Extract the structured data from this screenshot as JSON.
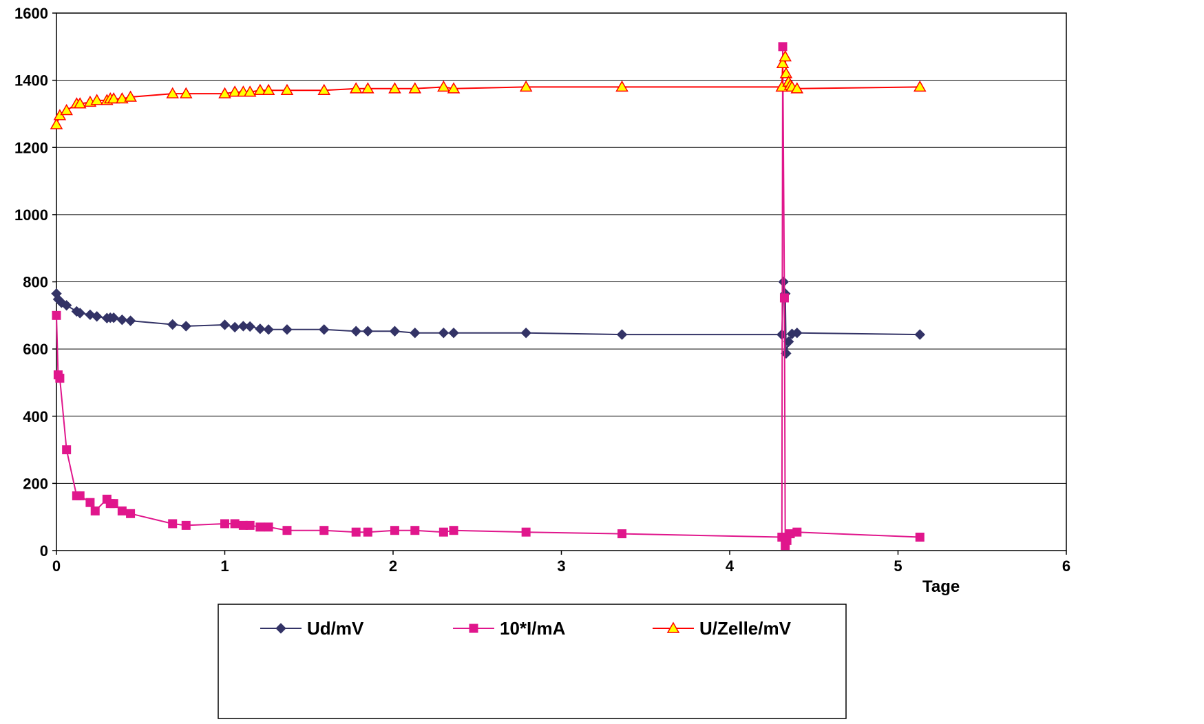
{
  "chart_data": {
    "type": "line",
    "title": "",
    "xlabel": "Tage",
    "ylabel": "",
    "xlim": [
      0,
      6
    ],
    "ylim": [
      0,
      1600
    ],
    "x_ticks": [
      "0",
      "1",
      "2",
      "3",
      "4",
      "5",
      "6"
    ],
    "y_ticks": [
      "0",
      "200",
      "400",
      "600",
      "800",
      "1000",
      "1200",
      "1400",
      "1600"
    ],
    "grid": "horizontal",
    "legend_position": "bottom",
    "series": [
      {
        "name": "Ud/mV",
        "color": "#333366",
        "marker": "diamond",
        "points": [
          [
            0,
            765
          ],
          [
            0.01,
            748
          ],
          [
            0.03,
            738
          ],
          [
            0.06,
            730
          ],
          [
            0.12,
            712
          ],
          [
            0.14,
            707
          ],
          [
            0.2,
            702
          ],
          [
            0.24,
            697
          ],
          [
            0.3,
            692
          ],
          [
            0.32,
            693
          ],
          [
            0.34,
            693
          ],
          [
            0.39,
            687
          ],
          [
            0.44,
            684
          ],
          [
            0.69,
            673
          ],
          [
            0.77,
            668
          ],
          [
            1.0,
            672
          ],
          [
            1.06,
            665
          ],
          [
            1.11,
            668
          ],
          [
            1.15,
            667
          ],
          [
            1.21,
            660
          ],
          [
            1.26,
            658
          ],
          [
            1.37,
            658
          ],
          [
            1.59,
            658
          ],
          [
            1.78,
            653
          ],
          [
            1.85,
            653
          ],
          [
            2.01,
            653
          ],
          [
            2.13,
            648
          ],
          [
            2.3,
            648
          ],
          [
            2.36,
            648
          ],
          [
            2.79,
            648
          ],
          [
            3.36,
            643
          ],
          [
            4.31,
            643
          ],
          [
            4.32,
            800
          ],
          [
            4.33,
            765
          ],
          [
            4.335,
            587
          ],
          [
            4.35,
            622
          ],
          [
            4.37,
            645
          ],
          [
            4.4,
            648
          ],
          [
            5.13,
            643
          ]
        ]
      },
      {
        "name": "10*I/mA",
        "color": "#e0168c",
        "marker": "square",
        "points": [
          [
            0,
            700
          ],
          [
            0.01,
            523
          ],
          [
            0.02,
            513
          ],
          [
            0.06,
            300
          ],
          [
            0.12,
            163
          ],
          [
            0.14,
            163
          ],
          [
            0.2,
            143
          ],
          [
            0.23,
            118
          ],
          [
            0.3,
            153
          ],
          [
            0.32,
            140
          ],
          [
            0.34,
            140
          ],
          [
            0.39,
            118
          ],
          [
            0.44,
            110
          ],
          [
            0.69,
            80
          ],
          [
            0.77,
            75
          ],
          [
            1.0,
            80
          ],
          [
            1.06,
            80
          ],
          [
            1.11,
            75
          ],
          [
            1.15,
            75
          ],
          [
            1.21,
            70
          ],
          [
            1.26,
            70
          ],
          [
            1.37,
            60
          ],
          [
            1.59,
            60
          ],
          [
            1.78,
            55
          ],
          [
            1.85,
            55
          ],
          [
            2.01,
            60
          ],
          [
            2.13,
            60
          ],
          [
            2.3,
            55
          ],
          [
            2.36,
            60
          ],
          [
            2.79,
            55
          ],
          [
            3.36,
            50
          ],
          [
            4.31,
            40
          ],
          [
            4.315,
            1500
          ],
          [
            4.325,
            752
          ],
          [
            4.33,
            15
          ],
          [
            4.34,
            30
          ],
          [
            4.36,
            50
          ],
          [
            4.4,
            55
          ],
          [
            5.13,
            40
          ]
        ]
      },
      {
        "name": "U/Zelle/mV",
        "color": "#ff0000",
        "marker_fill": "#ffff00",
        "marker": "triangle",
        "points": [
          [
            0,
            1268
          ],
          [
            0.02,
            1295
          ],
          [
            0.06,
            1310
          ],
          [
            0.12,
            1330
          ],
          [
            0.14,
            1330
          ],
          [
            0.2,
            1335
          ],
          [
            0.24,
            1340
          ],
          [
            0.3,
            1340
          ],
          [
            0.32,
            1345
          ],
          [
            0.34,
            1345
          ],
          [
            0.39,
            1345
          ],
          [
            0.44,
            1350
          ],
          [
            0.69,
            1360
          ],
          [
            0.77,
            1360
          ],
          [
            1.0,
            1360
          ],
          [
            1.06,
            1365
          ],
          [
            1.11,
            1365
          ],
          [
            1.15,
            1365
          ],
          [
            1.21,
            1370
          ],
          [
            1.26,
            1370
          ],
          [
            1.37,
            1370
          ],
          [
            1.59,
            1370
          ],
          [
            1.78,
            1375
          ],
          [
            1.85,
            1375
          ],
          [
            2.01,
            1375
          ],
          [
            2.13,
            1375
          ],
          [
            2.3,
            1380
          ],
          [
            2.36,
            1375
          ],
          [
            2.79,
            1380
          ],
          [
            3.36,
            1380
          ],
          [
            4.31,
            1380
          ],
          [
            4.315,
            1450
          ],
          [
            4.33,
            1470
          ],
          [
            4.335,
            1420
          ],
          [
            4.35,
            1395
          ],
          [
            4.36,
            1385
          ],
          [
            4.37,
            1380
          ],
          [
            4.4,
            1375
          ],
          [
            5.13,
            1380
          ]
        ]
      }
    ]
  }
}
